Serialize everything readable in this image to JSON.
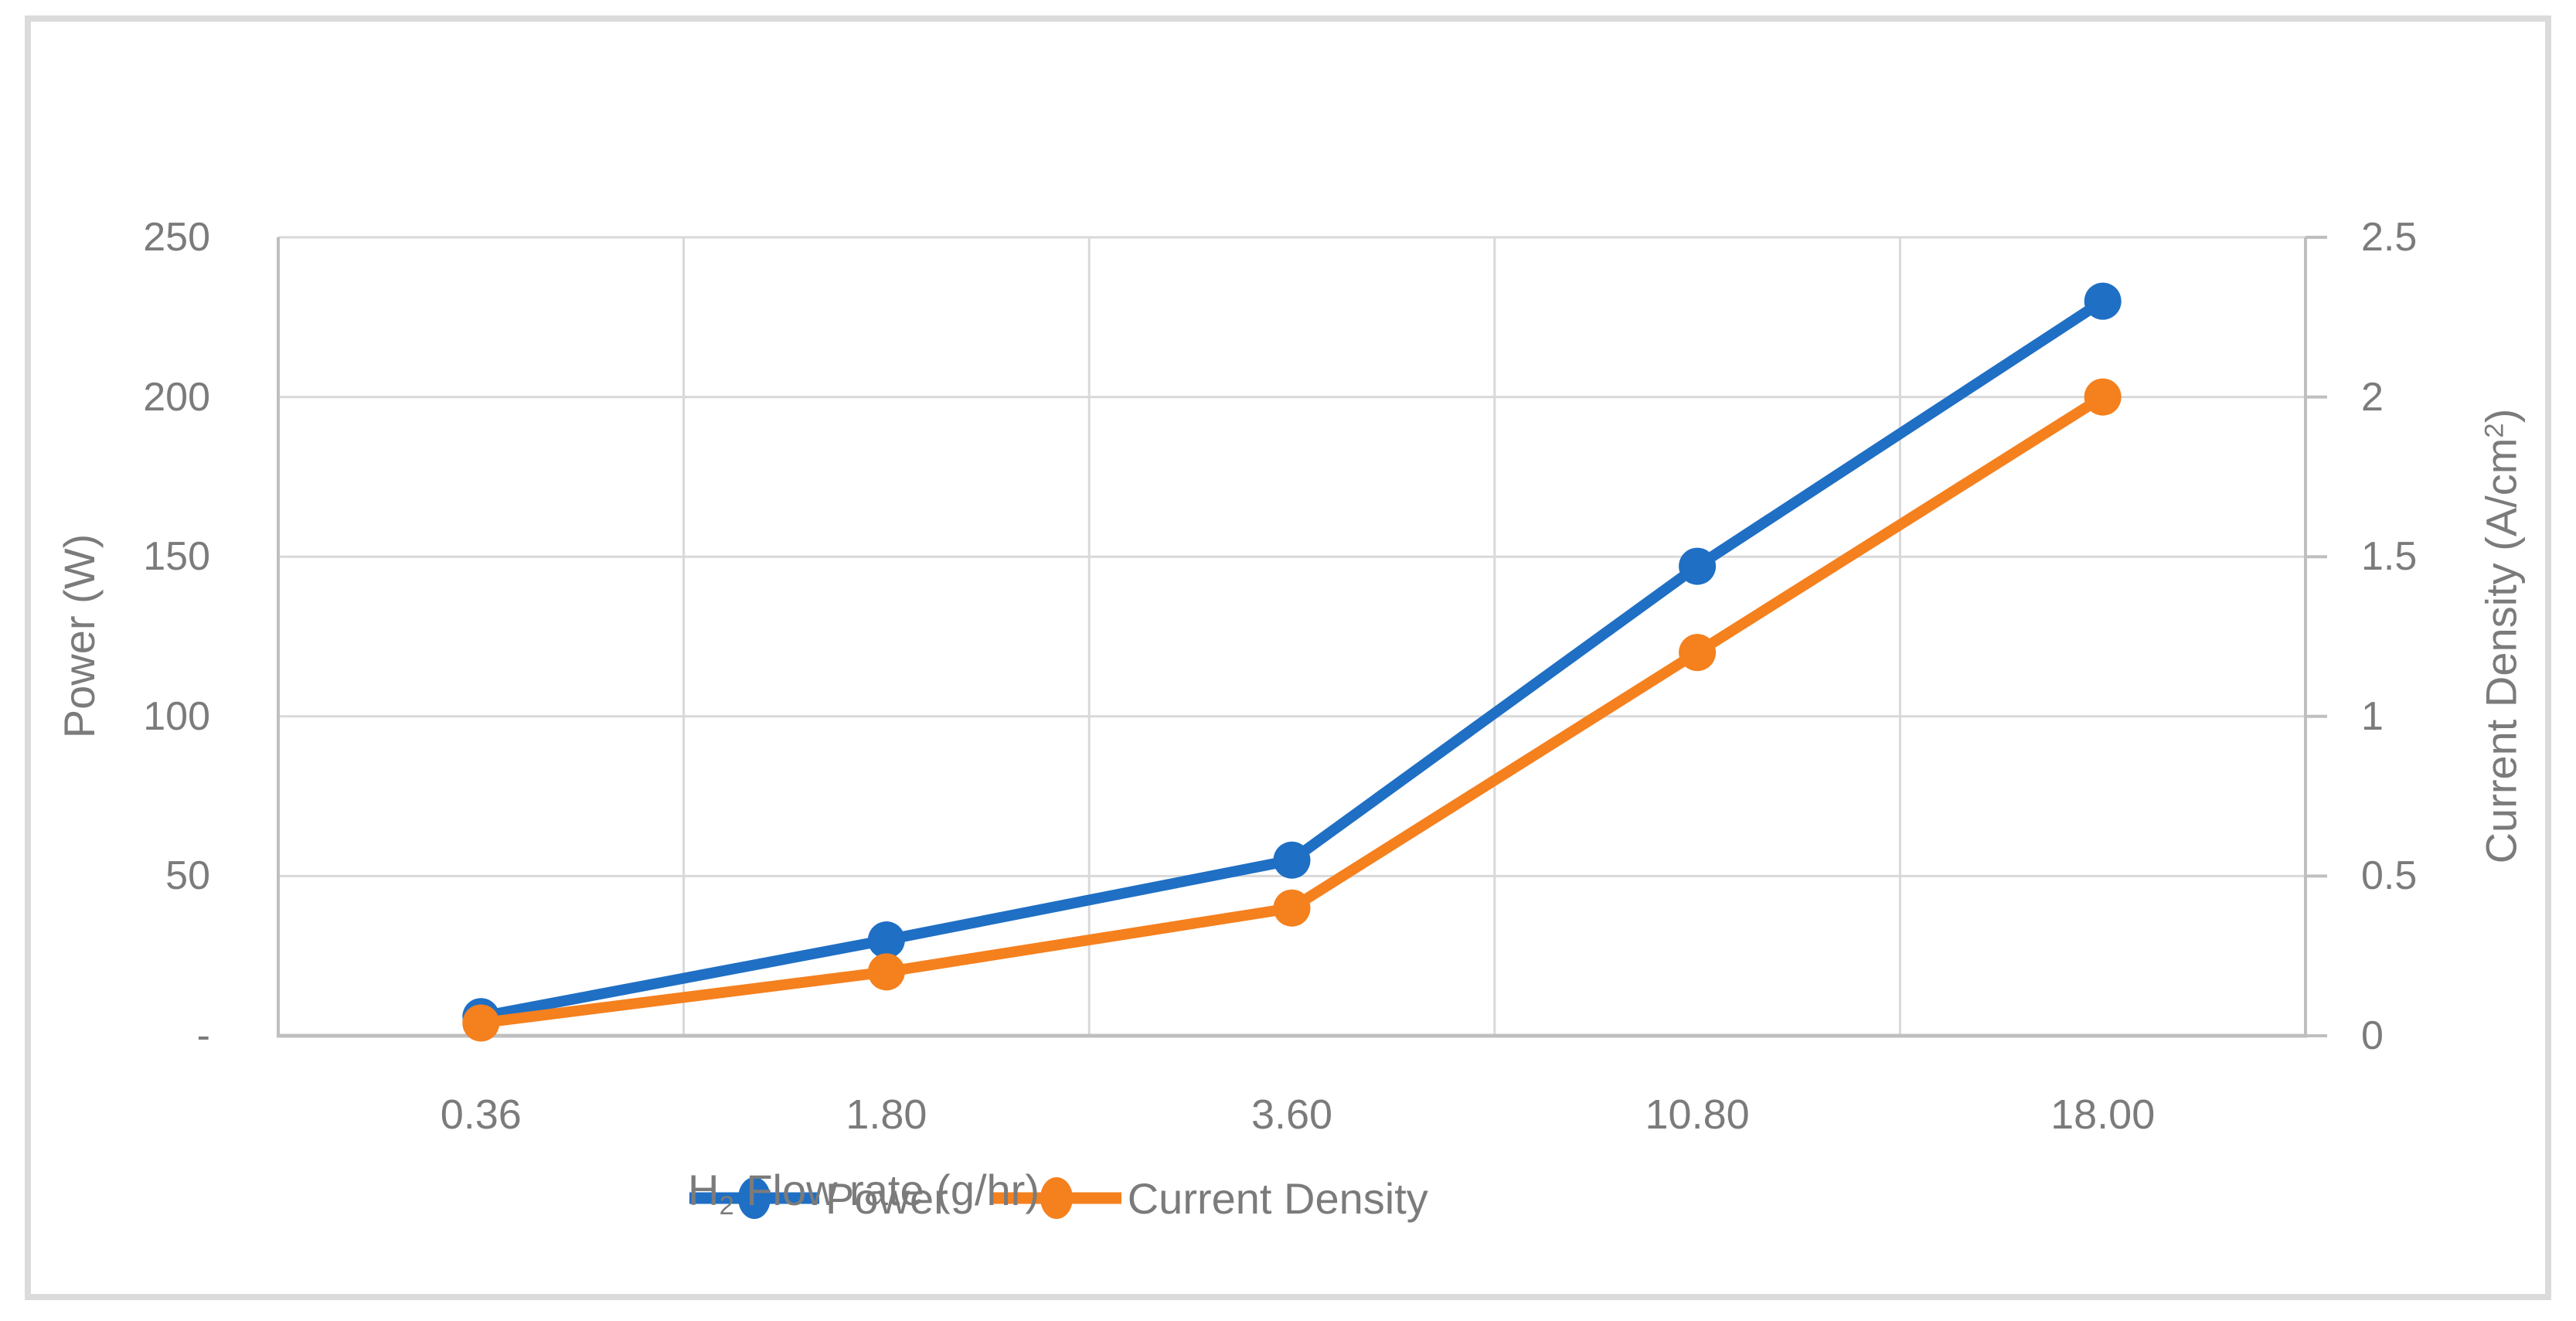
{
  "colors": {
    "background": "#ffffff",
    "frame_border": "#dbdbdb",
    "gridline": "#d9d9d9",
    "axis_line": "#bfbfbf",
    "text": "#7b7b7b",
    "series_power": "#1f6fc4",
    "series_current_density": "#f5801e"
  },
  "chart_data": {
    "type": "line",
    "categories": [
      "0.36",
      "1.80",
      "3.60",
      "10.80",
      "18.00"
    ],
    "series": [
      {
        "name": "Power",
        "axis": "left",
        "color": "#1f6fc4",
        "values": [
          6,
          30,
          55,
          147,
          230
        ]
      },
      {
        "name": "Current Density",
        "axis": "right",
        "color": "#f5801e",
        "values": [
          0.04,
          0.2,
          0.4,
          1.2,
          2.0
        ]
      }
    ],
    "left_axis": {
      "title": "Power (W)",
      "min": 0,
      "max": 250,
      "tick_values": [
        250,
        200,
        150,
        100,
        50,
        0
      ],
      "tick_labels": [
        "250",
        "200",
        "150",
        "100",
        "50",
        "-"
      ]
    },
    "right_axis": {
      "title_parts": {
        "pre": "Current Density (A/cm",
        "sup": "2",
        "post": ")"
      },
      "min": 0,
      "max": 2.5,
      "tick_values": [
        2.5,
        2,
        1.5,
        1,
        0.5,
        0
      ],
      "tick_labels": [
        "2.5",
        "2",
        "1.5",
        "1",
        "0.5",
        "0"
      ]
    },
    "x_axis": {
      "title_parts": {
        "pre": "H",
        "sub": "2",
        "post": " Flow rate (g/hr)"
      }
    },
    "grid": true,
    "legend_position": "bottom-inline"
  }
}
